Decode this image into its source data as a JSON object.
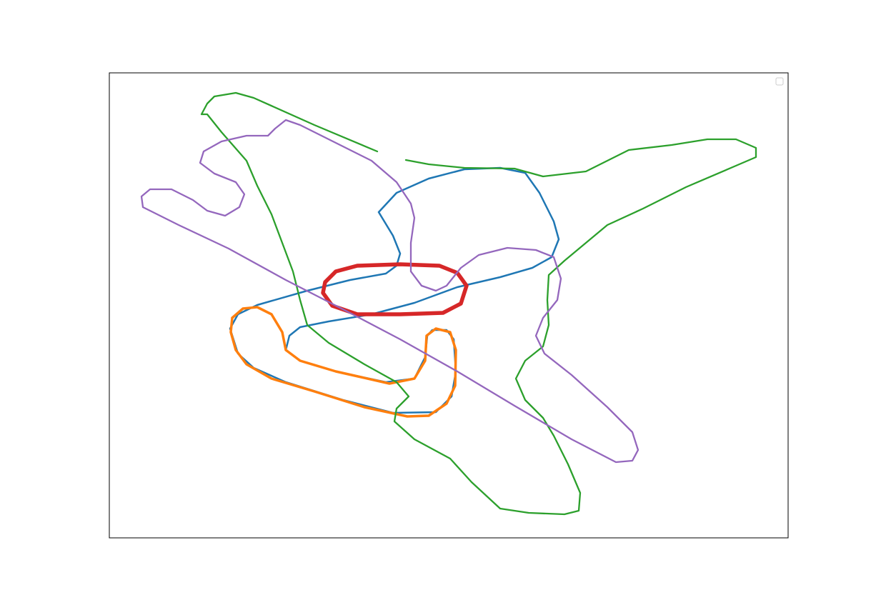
{
  "chart_data": {
    "type": "line",
    "xlim": [
      153,
      1103
    ],
    "ylim": [
      753,
      102
    ],
    "legend": "upper right",
    "series": [
      {
        "color": "#1f77b4",
        "x": [
          530,
          555,
          600,
          650,
          700,
          735,
          755,
          775,
          782,
          772,
          745,
          700,
          640,
          580,
          520,
          460,
          420,
          405,
          400,
          420,
          470,
          540,
          580,
          595,
          598,
          605,
          625,
          635,
          638,
          632,
          610,
          550,
          480,
          400,
          355,
          333,
          322,
          333,
          360,
          430,
          490,
          540,
          555,
          560,
          550,
          530
        ],
        "y": [
          297,
          270,
          250,
          237,
          235,
          242,
          270,
          310,
          335,
          360,
          375,
          388,
          402,
          424,
          440,
          450,
          458,
          470,
          490,
          505,
          520,
          535,
          530,
          500,
          470,
          462,
          462,
          475,
          520,
          555,
          577,
          578,
          560,
          535,
          515,
          495,
          460,
          440,
          427,
          407,
          392,
          383,
          372,
          355,
          330,
          297
        ]
      },
      {
        "color": "#ff7f0e",
        "x": [
          325,
          340,
          360,
          380,
          395,
          400,
          420,
          470,
          545,
          580,
          595,
          597,
          610,
          630,
          638,
          637,
          625,
          600,
          570,
          510,
          440,
          380,
          345,
          330,
          323,
          325
        ],
        "y": [
          445,
          432,
          430,
          440,
          465,
          490,
          505,
          520,
          537,
          530,
          505,
          470,
          460,
          465,
          490,
          540,
          565,
          582,
          583,
          570,
          548,
          530,
          510,
          490,
          465,
          445
        ]
      },
      {
        "color": "#2ca02c",
        "x": [
          528,
          440,
          355,
          330,
          300,
          290,
          282,
          290,
          310,
          345,
          360,
          380,
          395,
          410,
          420,
          430,
          460,
          510,
          555,
          572,
          555,
          552,
          580,
          630,
          660,
          700,
          740,
          790,
          810,
          812,
          795,
          775,
          760,
          735,
          722,
          735,
          760,
          768,
          766,
          768,
          790,
          820,
          850,
          900,
          960,
          1030,
          1058,
          1058,
          1030,
          990,
          940,
          880,
          850,
          820,
          760,
          720,
          650,
          600,
          568
        ],
        "y": [
          212,
          175,
          137,
          130,
          135,
          145,
          160,
          160,
          185,
          225,
          260,
          300,
          340,
          380,
          420,
          455,
          480,
          510,
          535,
          555,
          572,
          590,
          615,
          642,
          675,
          712,
          718,
          720,
          715,
          690,
          650,
          610,
          585,
          560,
          530,
          505,
          485,
          455,
          420,
          385,
          365,
          340,
          315,
          292,
          262,
          232,
          220,
          207,
          195,
          195,
          203,
          210,
          225,
          240,
          247,
          236,
          235,
          230,
          224
        ]
      },
      {
        "color": "#d62728",
        "x": [
          455,
          470,
          500,
          560,
          615,
          640,
          653,
          645,
          620,
          560,
          500,
          465,
          452,
          455
        ],
        "y": [
          395,
          380,
          372,
          370,
          372,
          382,
          400,
          425,
          438,
          440,
          440,
          428,
          410,
          395
        ]
      },
      {
        "color": "#9467bd",
        "x": [
          200,
          198,
          210,
          240,
          270,
          290,
          315,
          335,
          342,
          330,
          300,
          280,
          285,
          310,
          345,
          375,
          385,
          400,
          420,
          470,
          520,
          555,
          575,
          580,
          575,
          575,
          590,
          610,
          625,
          645,
          670,
          710,
          750,
          775,
          785,
          780,
          760,
          750,
          762,
          800,
          850,
          885,
          893,
          885,
          862,
          800,
          720,
          640,
          560,
          480,
          400,
          320,
          250,
          200
        ],
        "y": [
          290,
          275,
          265,
          265,
          280,
          295,
          302,
          290,
          272,
          255,
          243,
          228,
          212,
          198,
          190,
          190,
          180,
          168,
          175,
          200,
          225,
          255,
          285,
          305,
          340,
          380,
          400,
          407,
          400,
          375,
          357,
          347,
          350,
          360,
          390,
          420,
          445,
          470,
          495,
          525,
          570,
          605,
          630,
          645,
          647,
          615,
          568,
          520,
          475,
          433,
          392,
          348,
          315,
          290
        ]
      }
    ]
  }
}
